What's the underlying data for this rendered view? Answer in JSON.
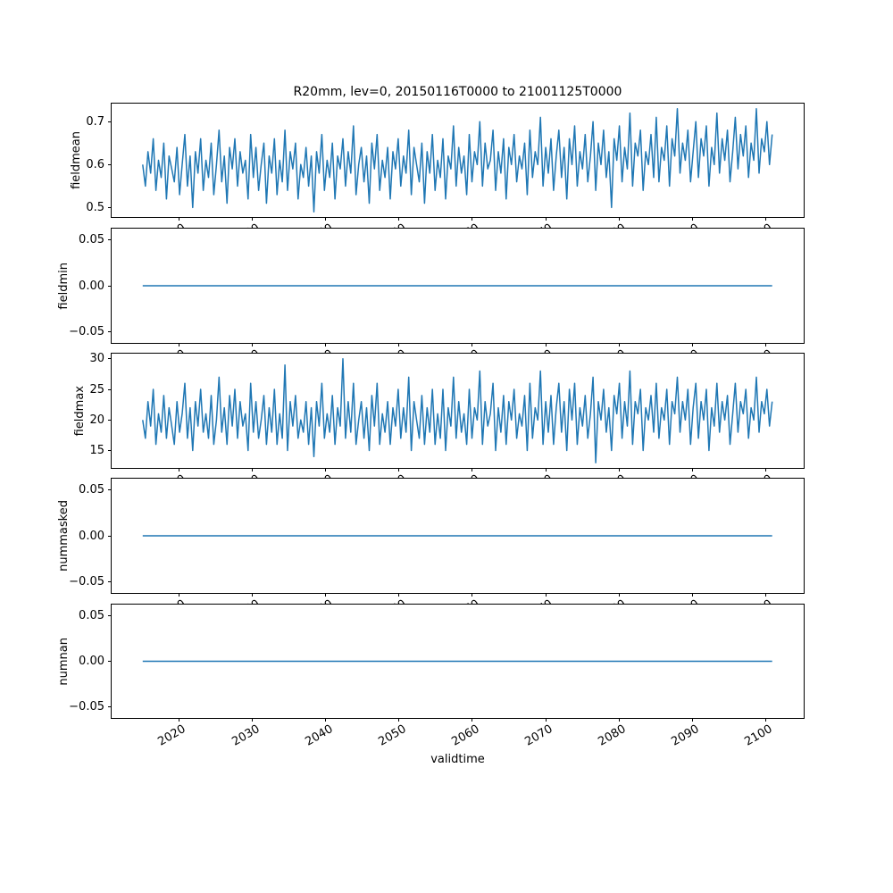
{
  "figure": {
    "background": "#ffffff"
  },
  "title": "R20mm, lev=0, 20150116T0000 to 21001125T0000",
  "xlabel": "validtime",
  "line_color": "#1f77b4",
  "x_ticks": [
    2020,
    2030,
    2040,
    2050,
    2060,
    2070,
    2080,
    2090,
    2100
  ],
  "x_tick_labels": [
    "2020",
    "2030",
    "2040",
    "2050",
    "2060",
    "2070",
    "2080",
    "2090",
    "2100"
  ],
  "x_range": {
    "start": 2015.04,
    "end": 2100.9
  },
  "x_limits": [
    2010.8,
    2105.2
  ],
  "chart_data": [
    {
      "type": "line",
      "name": "fieldmean",
      "ylabel": "fieldmean",
      "yticks": [
        0.5,
        0.6,
        0.7
      ],
      "ytick_labels": [
        "0.5",
        "0.6",
        "0.7"
      ],
      "ylim": [
        0.478,
        0.742
      ],
      "values": [
        0.6,
        0.55,
        0.63,
        0.58,
        0.66,
        0.54,
        0.61,
        0.57,
        0.65,
        0.52,
        0.62,
        0.59,
        0.56,
        0.64,
        0.53,
        0.6,
        0.67,
        0.55,
        0.62,
        0.5,
        0.63,
        0.58,
        0.66,
        0.54,
        0.61,
        0.57,
        0.65,
        0.53,
        0.6,
        0.68,
        0.56,
        0.62,
        0.51,
        0.64,
        0.59,
        0.66,
        0.55,
        0.63,
        0.58,
        0.61,
        0.52,
        0.67,
        0.57,
        0.64,
        0.54,
        0.6,
        0.65,
        0.51,
        0.62,
        0.58,
        0.66,
        0.53,
        0.61,
        0.56,
        0.68,
        0.54,
        0.63,
        0.59,
        0.65,
        0.52,
        0.6,
        0.57,
        0.64,
        0.55,
        0.62,
        0.49,
        0.63,
        0.58,
        0.67,
        0.54,
        0.61,
        0.57,
        0.65,
        0.52,
        0.62,
        0.59,
        0.66,
        0.55,
        0.63,
        0.58,
        0.69,
        0.53,
        0.6,
        0.64,
        0.56,
        0.62,
        0.51,
        0.65,
        0.59,
        0.67,
        0.54,
        0.61,
        0.57,
        0.64,
        0.52,
        0.63,
        0.59,
        0.66,
        0.55,
        0.62,
        0.58,
        0.68,
        0.53,
        0.64,
        0.6,
        0.56,
        0.65,
        0.51,
        0.63,
        0.58,
        0.67,
        0.54,
        0.61,
        0.57,
        0.66,
        0.52,
        0.62,
        0.59,
        0.69,
        0.55,
        0.64,
        0.58,
        0.62,
        0.53,
        0.67,
        0.56,
        0.63,
        0.6,
        0.7,
        0.55,
        0.65,
        0.59,
        0.61,
        0.68,
        0.54,
        0.63,
        0.58,
        0.66,
        0.52,
        0.64,
        0.6,
        0.67,
        0.56,
        0.62,
        0.59,
        0.65,
        0.53,
        0.68,
        0.57,
        0.63,
        0.6,
        0.71,
        0.55,
        0.64,
        0.58,
        0.66,
        0.54,
        0.62,
        0.68,
        0.57,
        0.64,
        0.52,
        0.66,
        0.6,
        0.69,
        0.55,
        0.63,
        0.59,
        0.67,
        0.56,
        0.62,
        0.7,
        0.54,
        0.65,
        0.6,
        0.68,
        0.57,
        0.63,
        0.5,
        0.66,
        0.61,
        0.69,
        0.56,
        0.64,
        0.59,
        0.72,
        0.55,
        0.65,
        0.62,
        0.68,
        0.54,
        0.63,
        0.6,
        0.67,
        0.57,
        0.71,
        0.56,
        0.64,
        0.61,
        0.69,
        0.55,
        0.66,
        0.62,
        0.73,
        0.58,
        0.65,
        0.61,
        0.68,
        0.56,
        0.63,
        0.7,
        0.57,
        0.66,
        0.62,
        0.69,
        0.55,
        0.64,
        0.6,
        0.72,
        0.58,
        0.66,
        0.61,
        0.68,
        0.56,
        0.63,
        0.71,
        0.59,
        0.67,
        0.62,
        0.69,
        0.57,
        0.65,
        0.61,
        0.73,
        0.58,
        0.66,
        0.63,
        0.7,
        0.6,
        0.67
      ]
    },
    {
      "type": "line",
      "name": "fieldmin",
      "ylabel": "fieldmin",
      "yticks": [
        -0.05,
        0.0,
        0.05
      ],
      "ytick_labels": [
        "−0.05",
        "0.00",
        "0.05"
      ],
      "ylim": [
        -0.0625,
        0.0625
      ],
      "constant": 0.0
    },
    {
      "type": "line",
      "name": "fieldmax",
      "ylabel": "fieldmax",
      "yticks": [
        15,
        20,
        25,
        30
      ],
      "ytick_labels": [
        "15",
        "20",
        "25",
        "30"
      ],
      "ylim": [
        12.15,
        30.85
      ],
      "values": [
        20,
        17,
        23,
        19,
        25,
        16,
        21,
        18,
        24,
        17,
        22,
        19,
        16,
        23,
        18,
        21,
        26,
        17,
        22,
        15,
        23,
        19,
        25,
        18,
        21,
        17,
        24,
        16,
        20,
        27,
        18,
        22,
        16,
        24,
        19,
        25,
        17,
        23,
        19,
        21,
        15,
        26,
        18,
        23,
        17,
        20,
        24,
        16,
        22,
        18,
        25,
        16,
        21,
        17,
        29,
        15,
        23,
        19,
        24,
        17,
        20,
        18,
        23,
        16,
        22,
        14,
        23,
        19,
        26,
        17,
        21,
        18,
        24,
        16,
        22,
        19,
        30,
        17,
        23,
        18,
        26,
        16,
        20,
        23,
        17,
        22,
        15,
        24,
        19,
        26,
        16,
        21,
        18,
        23,
        16,
        22,
        19,
        25,
        17,
        22,
        18,
        27,
        15,
        23,
        20,
        17,
        24,
        16,
        22,
        18,
        25,
        16,
        21,
        17,
        25,
        15,
        22,
        19,
        27,
        17,
        23,
        18,
        21,
        16,
        25,
        17,
        22,
        20,
        28,
        16,
        23,
        19,
        21,
        26,
        15,
        22,
        18,
        24,
        16,
        23,
        20,
        25,
        17,
        21,
        19,
        24,
        15,
        26,
        17,
        22,
        20,
        28,
        16,
        23,
        18,
        24,
        16,
        22,
        26,
        18,
        23,
        15,
        25,
        20,
        26,
        16,
        22,
        19,
        24,
        17,
        21,
        27,
        13,
        23,
        20,
        25,
        18,
        22,
        15,
        24,
        21,
        26,
        17,
        23,
        19,
        28,
        16,
        23,
        21,
        25,
        15,
        22,
        20,
        24,
        18,
        26,
        17,
        22,
        20,
        25,
        16,
        23,
        21,
        27,
        18,
        23,
        20,
        25,
        16,
        22,
        26,
        17,
        23,
        20,
        25,
        15,
        22,
        19,
        26,
        18,
        23,
        20,
        24,
        16,
        21,
        26,
        18,
        23,
        21,
        25,
        17,
        22,
        20,
        27,
        18,
        23,
        21,
        25,
        19,
        23
      ]
    },
    {
      "type": "line",
      "name": "nummasked",
      "ylabel": "nummasked",
      "yticks": [
        -0.05,
        0.0,
        0.05
      ],
      "ytick_labels": [
        "−0.05",
        "0.00",
        "0.05"
      ],
      "ylim": [
        -0.0625,
        0.0625
      ],
      "constant": 0.0
    },
    {
      "type": "line",
      "name": "numnan",
      "ylabel": "numnan",
      "yticks": [
        -0.05,
        0.0,
        0.05
      ],
      "ytick_labels": [
        "−0.05",
        "0.00",
        "0.05"
      ],
      "ylim": [
        -0.0625,
        0.0625
      ],
      "constant": 0.0
    }
  ]
}
